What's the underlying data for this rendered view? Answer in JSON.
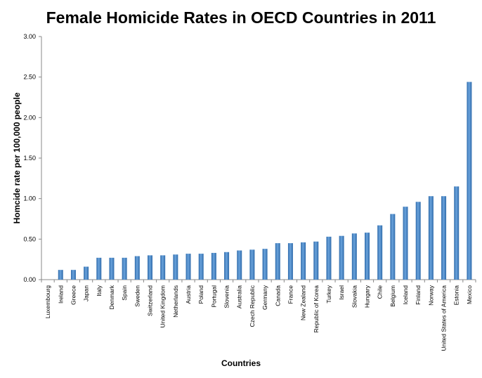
{
  "chart_data": {
    "type": "bar",
    "title": "Female Homicide Rates in OECD Countries in 2011",
    "xlabel": "Countries",
    "ylabel": "Homcide rate per 100,000 people",
    "ylim": [
      0,
      3
    ],
    "yticks": [
      "0.00",
      "0.50",
      "1.00",
      "1.50",
      "2.00",
      "2.50",
      "3.00"
    ],
    "grid": false,
    "bar_color": "#3e7fc2",
    "categories": [
      "Luxembourg",
      "Ireland",
      "Greece",
      "Japan",
      "Italy",
      "Denmark",
      "Spain",
      "Sweden",
      "Switzerland",
      "United Kingdom",
      "Netherlands",
      "Austria",
      "Poland",
      "Portugal",
      "Slovenia",
      "Australia",
      "Czech Republic",
      "Germany",
      "Canada",
      "France",
      "New Zealand",
      "Republic of Korea",
      "Turkey",
      "Israel",
      "Slovakia",
      "Hungary",
      "Chile",
      "Belgium",
      "Iceland",
      "Finland",
      "Norway",
      "United States of America",
      "Estonia",
      "Mexico"
    ],
    "values": [
      0.0,
      0.12,
      0.12,
      0.16,
      0.27,
      0.27,
      0.27,
      0.29,
      0.3,
      0.3,
      0.31,
      0.32,
      0.32,
      0.33,
      0.34,
      0.36,
      0.37,
      0.38,
      0.45,
      0.45,
      0.46,
      0.47,
      0.53,
      0.54,
      0.57,
      0.58,
      0.67,
      0.81,
      0.9,
      0.96,
      1.03,
      1.03,
      1.15,
      2.44
    ]
  }
}
